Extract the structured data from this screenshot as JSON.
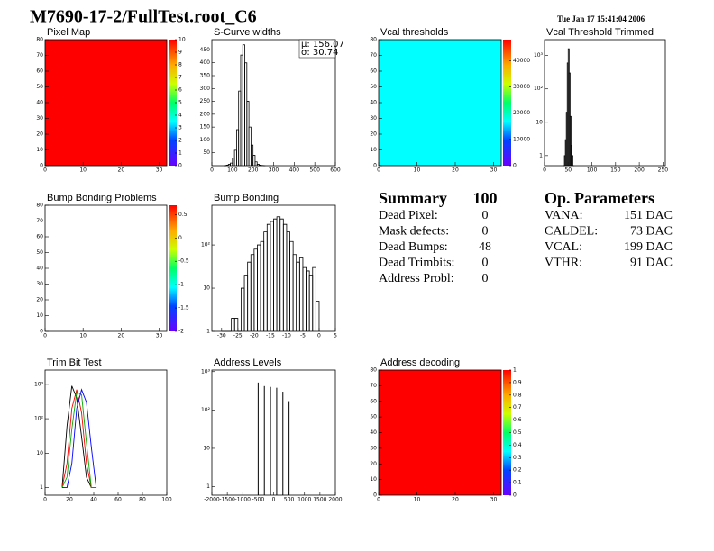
{
  "header": {
    "title": "M7690-17-2/FullTest.root_C6",
    "date": "Tue Jan 17 15:41:04 2006"
  },
  "panels": [
    {
      "title": "Pixel Map",
      "kind": "map",
      "fill": "#ff0000",
      "xlim": [
        0,
        32
      ],
      "xticks": [
        0,
        10,
        20,
        30
      ],
      "ylim": [
        0,
        80
      ],
      "yticks": [
        0,
        10,
        20,
        30,
        40,
        50,
        60,
        70,
        80
      ],
      "zlim": [
        0,
        10
      ],
      "zticks": [
        0,
        1,
        2,
        3,
        4,
        5,
        6,
        7,
        8,
        9,
        10
      ]
    },
    {
      "title": "S-Curve widths",
      "kind": "hist",
      "xlim": [
        0,
        600
      ],
      "xticks": [
        0,
        100,
        200,
        300,
        400,
        500,
        600
      ],
      "ylim": [
        0,
        490
      ],
      "yticks": [
        50,
        100,
        150,
        200,
        250,
        300,
        350,
        400,
        450
      ],
      "bins": [
        60,
        70,
        80,
        90,
        100,
        110,
        120,
        130,
        140,
        150,
        160,
        170,
        180,
        190,
        200,
        210,
        220,
        230,
        240,
        250,
        260
      ],
      "values": [
        0,
        2,
        5,
        10,
        30,
        60,
        140,
        290,
        430,
        470,
        400,
        250,
        150,
        80,
        40,
        15,
        5,
        2,
        1,
        0
      ],
      "stats": [
        "μ: 156.07",
        "σ: 30.74"
      ]
    },
    {
      "title": "Vcal thresholds",
      "kind": "map",
      "fill": "#00ffff",
      "xlim": [
        0,
        32
      ],
      "xticks": [
        0,
        10,
        20,
        30
      ],
      "ylim": [
        0,
        80
      ],
      "yticks": [
        0,
        10,
        20,
        30,
        40,
        50,
        60,
        70,
        80
      ],
      "zlim": [
        0,
        48000
      ],
      "zticks": [
        0,
        10000,
        20000,
        30000,
        40000
      ]
    },
    {
      "title": "Vcal Threshold Trimmed",
      "kind": "hist",
      "log": true,
      "xlim": [
        0,
        255
      ],
      "xticks": [
        0,
        50,
        100,
        150,
        200,
        250
      ],
      "ylim": [
        0.5,
        3000
      ],
      "yticks": [
        1,
        10,
        {
          "value": 100,
          "label": "10²"
        },
        {
          "value": 1000,
          "label": "10³"
        }
      ],
      "bins": [
        40,
        42,
        44,
        46,
        48,
        50,
        52,
        54,
        56,
        58,
        60,
        62
      ],
      "values": [
        0,
        1,
        3,
        20,
        600,
        1600,
        300,
        15,
        2,
        1,
        0
      ]
    },
    {
      "title": "Bump Bonding Problems",
      "kind": "map",
      "fill": "#ffffff",
      "xlim": [
        0,
        32
      ],
      "xticks": [
        0,
        10,
        20,
        30
      ],
      "ylim": [
        0,
        80
      ],
      "yticks": [
        0,
        10,
        20,
        30,
        40,
        50,
        60,
        70,
        80
      ],
      "zlim": [
        -2,
        0.7
      ],
      "zticks": [
        0.5,
        0,
        -0.5,
        -1,
        -1.5,
        -2
      ]
    },
    {
      "title": "Bump Bonding",
      "kind": "hist",
      "log": true,
      "xlim": [
        -33,
        5
      ],
      "xticks": [
        -30,
        -25,
        -20,
        -15,
        -10,
        -5,
        0,
        5
      ],
      "ylim": [
        1,
        830
      ],
      "yticks": [
        1,
        10,
        {
          "value": 100,
          "label": "10²"
        }
      ],
      "bins": [
        -30,
        -29,
        -28,
        -27,
        -26,
        -25,
        -24,
        -23,
        -22,
        -21,
        -20,
        -19,
        -18,
        -17,
        -16,
        -15,
        -14,
        -13,
        -12,
        -11,
        -10,
        -9,
        -8,
        -7,
        -6,
        -5,
        -4,
        -3,
        -2,
        -1,
        0
      ],
      "values": [
        0,
        0,
        1,
        2,
        2,
        0,
        10,
        20,
        40,
        60,
        80,
        100,
        120,
        200,
        300,
        350,
        400,
        450,
        400,
        300,
        200,
        120,
        60,
        40,
        50,
        30,
        25,
        20,
        30,
        5
      ]
    },
    {
      "title": "Trim Bit Test",
      "kind": "lines",
      "log": true,
      "xlim": [
        0,
        100
      ],
      "xticks": [
        0,
        20,
        40,
        60,
        80,
        100
      ],
      "ylim": [
        0.6,
        2600
      ],
      "yticks": [
        1,
        10,
        {
          "value": 100,
          "label": "10²"
        },
        {
          "value": 1000,
          "label": "10³"
        }
      ],
      "x": [
        14,
        18,
        22,
        26,
        30,
        34,
        38,
        42
      ],
      "series": [
        {
          "color": "#000000",
          "values": [
            1,
            60,
            900,
            400,
            30,
            2,
            1,
            1
          ]
        },
        {
          "color": "#ff0000",
          "values": [
            1,
            5,
            200,
            700,
            150,
            5,
            1,
            1
          ]
        },
        {
          "color": "#00aa00",
          "values": [
            1,
            2,
            50,
            600,
            500,
            20,
            1,
            1
          ]
        },
        {
          "color": "#0000ff",
          "values": [
            1,
            1,
            5,
            200,
            700,
            300,
            15,
            1
          ]
        }
      ]
    },
    {
      "title": "Address Levels",
      "kind": "spikes",
      "log": true,
      "xlim": [
        -2000,
        2000
      ],
      "xticks": [
        -2000,
        -1500,
        -1000,
        -500,
        0,
        500,
        1000,
        1500,
        2000
      ],
      "ylim": [
        0.6,
        1100
      ],
      "yticks": [
        1,
        10,
        {
          "value": 100,
          "label": "10²"
        },
        {
          "value": 1000,
          "label": "10³"
        }
      ],
      "x": [
        -500,
        -300,
        -100,
        100,
        300,
        500
      ],
      "values": [
        520,
        420,
        400,
        380,
        300,
        170
      ]
    },
    {
      "title": "Address decoding",
      "kind": "map",
      "fill": "#ff0000",
      "xlim": [
        0,
        32
      ],
      "xticks": [
        0,
        10,
        20,
        30
      ],
      "ylim": [
        0,
        80
      ],
      "yticks": [
        0,
        10,
        20,
        30,
        40,
        50,
        60,
        70,
        80
      ],
      "zlim": [
        0,
        1
      ],
      "zticks": [
        0,
        0.1,
        0.2,
        0.3,
        0.4,
        0.5,
        0.6,
        0.7,
        0.8,
        0.9,
        1
      ]
    }
  ],
  "summary": {
    "title": "Summary",
    "count": "100",
    "rows": [
      [
        "Dead Pixel:",
        "0"
      ],
      [
        "Mask defects:",
        "0"
      ],
      [
        "Dead Bumps:",
        "48"
      ],
      [
        "Dead Trimbits:",
        "0"
      ],
      [
        "Address Probl:",
        "0"
      ]
    ]
  },
  "parameters": {
    "title": "Op. Parameters",
    "rows": [
      [
        "VANA:",
        "151 DAC"
      ],
      [
        "CALDEL:",
        "73 DAC"
      ],
      [
        "VCAL:",
        "199 DAC"
      ],
      [
        "VTHR:",
        "91 DAC"
      ]
    ]
  }
}
